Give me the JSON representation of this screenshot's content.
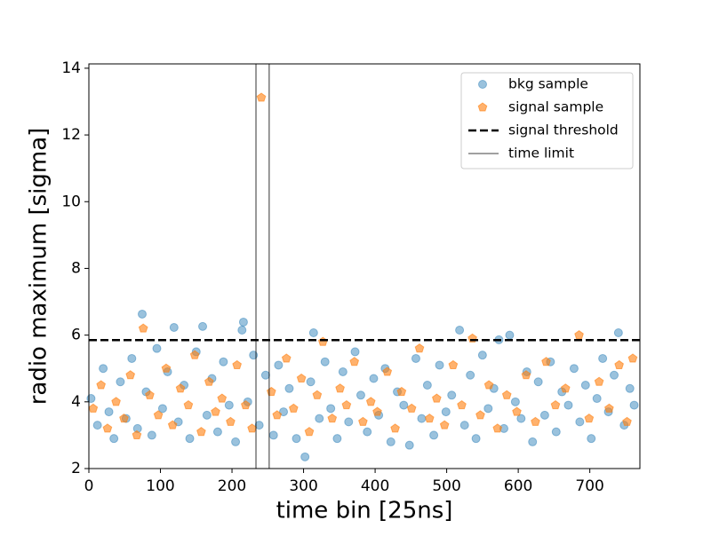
{
  "chart_data": {
    "type": "scatter",
    "xlabel": "time bin [25ns]",
    "ylabel": "radio maximum [sigma]",
    "xlim": [
      0,
      770
    ],
    "ylim": [
      2,
      14.13
    ],
    "xticks": [
      0,
      100,
      200,
      300,
      400,
      500,
      600,
      700
    ],
    "yticks": [
      2,
      4,
      6,
      8,
      10,
      12,
      14
    ],
    "legend": "upper right",
    "series": [
      {
        "name": "bkg sample",
        "color": "#1f77b4",
        "marker": "circle",
        "x": [
          3,
          12,
          20,
          28,
          35,
          44,
          52,
          60,
          68,
          74.5,
          80,
          88,
          95,
          103,
          110,
          119,
          125,
          133,
          141,
          150,
          159,
          165,
          172,
          180,
          188,
          196,
          205,
          214,
          216,
          222,
          230,
          238,
          247,
          258,
          265,
          272,
          280,
          290,
          302,
          310,
          314,
          322,
          330,
          338,
          347,
          355,
          363,
          372,
          380,
          389,
          398,
          405,
          414,
          422,
          431,
          440,
          448,
          457,
          465,
          473,
          482,
          490,
          499,
          507,
          518,
          525,
          533,
          541,
          550,
          558,
          566,
          573,
          580,
          588,
          596,
          604,
          612,
          620,
          628,
          637,
          645,
          653,
          661,
          670,
          678,
          686,
          694,
          702,
          710,
          718,
          726,
          734,
          740,
          748,
          756,
          762
        ],
        "values": [
          4.1,
          3.3,
          5.0,
          3.7,
          2.9,
          4.6,
          3.5,
          5.3,
          3.2,
          6.63,
          4.3,
          3.0,
          5.6,
          3.8,
          4.9,
          6.23,
          3.4,
          4.5,
          2.9,
          5.5,
          6.26,
          3.6,
          4.7,
          3.1,
          5.2,
          3.9,
          2.8,
          6.15,
          6.39,
          4.0,
          5.4,
          3.3,
          4.8,
          3.0,
          5.1,
          3.7,
          4.4,
          2.9,
          2.35,
          4.6,
          6.07,
          3.5,
          5.2,
          3.8,
          2.9,
          4.9,
          3.4,
          5.5,
          4.2,
          3.1,
          4.7,
          3.6,
          5.0,
          2.8,
          4.3,
          3.9,
          2.7,
          5.3,
          3.5,
          4.5,
          3.0,
          5.1,
          3.7,
          4.2,
          6.15,
          3.3,
          4.8,
          2.9,
          5.4,
          3.8,
          4.4,
          5.86,
          3.2,
          6.0,
          4.0,
          3.5,
          4.9,
          2.8,
          4.6,
          3.6,
          5.2,
          3.1,
          4.3,
          3.9,
          5.0,
          3.4,
          4.5,
          2.9,
          4.1,
          5.3,
          3.7,
          4.8,
          6.07,
          3.3,
          4.4,
          3.9
        ]
      },
      {
        "name": "signal sample",
        "color": "#ff7f0e",
        "marker": "pentagon",
        "x": [
          6,
          17,
          26,
          38,
          49,
          58,
          67,
          76,
          85,
          97,
          108,
          117,
          128,
          139,
          148,
          157,
          168,
          177,
          186,
          198,
          207,
          219,
          228,
          241,
          255,
          263,
          276,
          286,
          297,
          308,
          319,
          327,
          340,
          351,
          360,
          371,
          383,
          394,
          403,
          417,
          428,
          437,
          451,
          462,
          476,
          486,
          497,
          509,
          521,
          536,
          547,
          559,
          571,
          584,
          598,
          611,
          624,
          639,
          652,
          666,
          685,
          699,
          713,
          727,
          741,
          752,
          760
        ],
        "values": [
          3.8,
          4.5,
          3.2,
          4.0,
          3.5,
          4.8,
          3.0,
          6.2,
          4.2,
          3.6,
          5.0,
          3.3,
          4.4,
          3.9,
          5.4,
          3.1,
          4.6,
          3.7,
          4.1,
          3.4,
          5.1,
          3.9,
          3.2,
          13.12,
          4.3,
          3.6,
          5.3,
          3.8,
          4.7,
          3.1,
          4.2,
          5.8,
          3.5,
          4.4,
          3.9,
          5.2,
          3.4,
          4.0,
          3.7,
          4.9,
          3.2,
          4.3,
          3.8,
          5.6,
          3.5,
          4.1,
          3.3,
          5.1,
          3.9,
          5.9,
          3.6,
          4.5,
          3.2,
          4.2,
          3.7,
          4.8,
          3.4,
          5.2,
          3.9,
          4.4,
          6.0,
          3.5,
          4.6,
          3.8,
          5.1,
          3.4,
          5.3
        ]
      }
    ],
    "hlines": [
      {
        "name": "signal threshold",
        "value": 5.85,
        "color": "#000000",
        "style": "dashed"
      }
    ],
    "vlines": [
      {
        "name": "time limit",
        "values": [
          233.5,
          252
        ],
        "color": "#000000",
        "style": "solid"
      }
    ]
  }
}
